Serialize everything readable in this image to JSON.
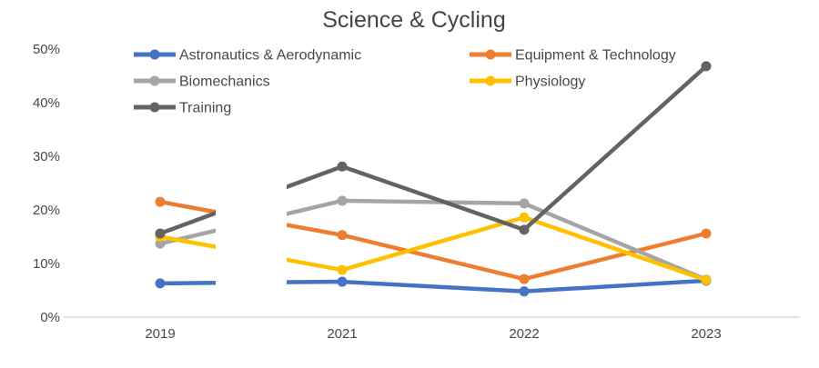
{
  "canvas": {
    "background": "#FFFFFF"
  },
  "chart_data": {
    "type": "line",
    "title": "Science & Cycling",
    "title_color": "#454545",
    "text_color": "#484848",
    "axis_line_color": "#D9D9D9",
    "grid": false,
    "legend_position": "top-two-columns",
    "categories": [
      "2019",
      "2021",
      "2022",
      "2023"
    ],
    "y_axis": {
      "min": 0,
      "max": 50,
      "step": 10,
      "tick_labels": [
        "0%",
        "10%",
        "20%",
        "30%",
        "40%",
        "50%"
      ]
    },
    "series": [
      {
        "name": "Astronautics & Aerodynamic",
        "color": "#4472C4",
        "values": [
          6.3,
          6.6,
          4.8,
          6.8
        ]
      },
      {
        "name": "Equipment & Technology",
        "color": "#ED7D31",
        "values": [
          21.5,
          15.3,
          7.1,
          15.6
        ]
      },
      {
        "name": "Biomechanics",
        "color": "#A5A5A5",
        "values": [
          13.7,
          21.7,
          21.2,
          7.0
        ]
      },
      {
        "name": "Physiology",
        "color": "#FFC000",
        "values": [
          15.0,
          8.8,
          18.6,
          6.9
        ]
      },
      {
        "name": "Training",
        "color": "#636363",
        "values": [
          15.6,
          28.1,
          16.3,
          46.8
        ]
      }
    ]
  }
}
